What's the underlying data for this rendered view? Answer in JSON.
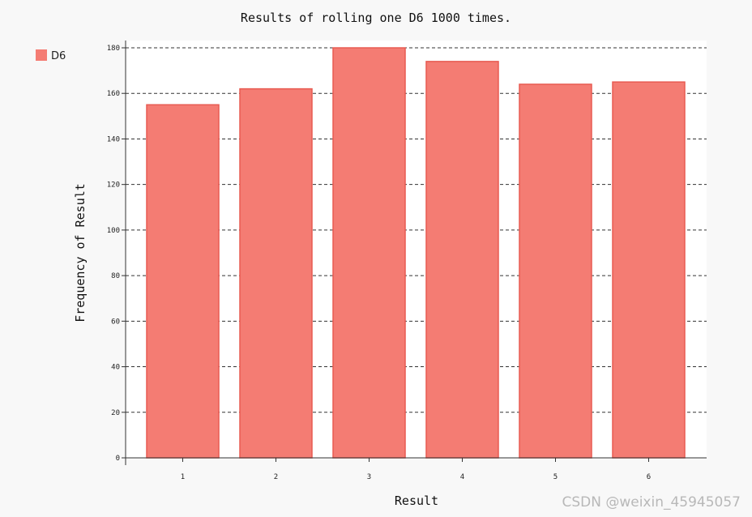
{
  "chart_data": {
    "type": "bar",
    "title": "Results of rolling one D6 1000 times.",
    "xlabel": "Result",
    "ylabel": "Frequency of Result",
    "categories": [
      "1",
      "2",
      "3",
      "4",
      "5",
      "6"
    ],
    "series": [
      {
        "name": "D6",
        "values": [
          155,
          162,
          180,
          174,
          164,
          165
        ],
        "color": "#f47c73",
        "stroke": "#e85b52"
      }
    ],
    "ylim": [
      0,
      180
    ],
    "yticks": [
      "0",
      "20",
      "40",
      "60",
      "80",
      "100",
      "120",
      "140",
      "160",
      "180"
    ],
    "grid": true,
    "grid_style": "dashed-horizontal",
    "legend_position": "top-left"
  },
  "watermark": "CSDN @weixin_45945057"
}
